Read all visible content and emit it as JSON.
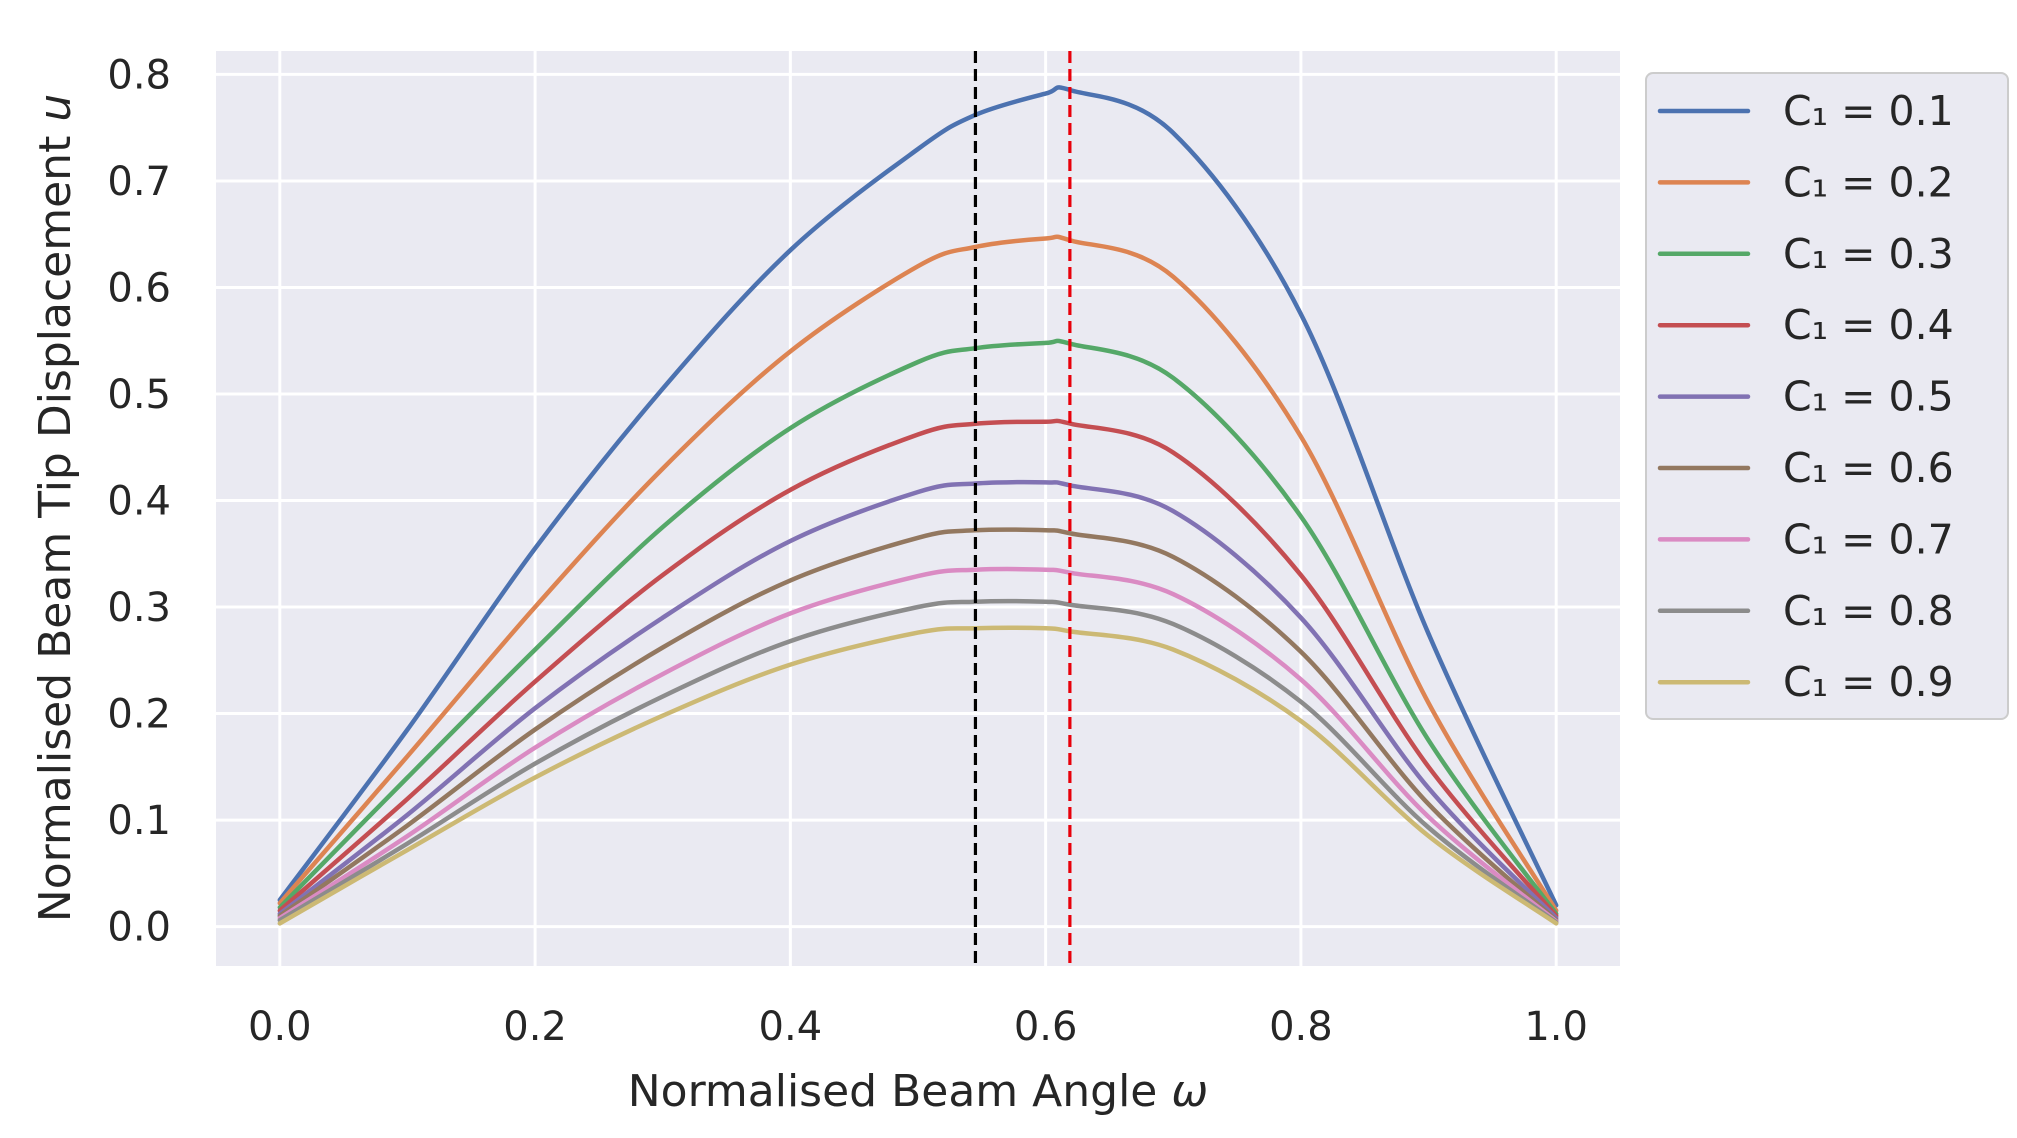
{
  "chart_data": {
    "type": "line",
    "xlabel": "Normalised Beam Angle",
    "xlabel_symbol": "ω",
    "ylabel": "Normalised Beam Tip Displacement",
    "ylabel_symbol": "u",
    "xlim": [
      -0.05,
      1.05
    ],
    "ylim": [
      -0.037,
      0.822
    ],
    "xticks": [
      "0.0",
      "0.2",
      "0.4",
      "0.6",
      "0.8",
      "1.0"
    ],
    "yticks": [
      "0.0",
      "0.1",
      "0.2",
      "0.3",
      "0.4",
      "0.5",
      "0.6",
      "0.7",
      "0.8"
    ],
    "grid": true,
    "legend_position": "outside-right",
    "x": [
      0.0,
      0.1,
      0.2,
      0.3,
      0.4,
      0.5,
      0.545,
      0.6,
      0.62,
      0.7,
      0.8,
      0.9,
      1.0
    ],
    "series": [
      {
        "name": "C₁ = 0.1",
        "color": "#4c72b0",
        "values": [
          0.025,
          0.185,
          0.355,
          0.505,
          0.635,
          0.73,
          0.762,
          0.782,
          0.785,
          0.745,
          0.575,
          0.275,
          0.02
        ]
      },
      {
        "name": "C₁ = 0.2",
        "color": "#dd8452",
        "values": [
          0.022,
          0.16,
          0.3,
          0.43,
          0.54,
          0.62,
          0.638,
          0.646,
          0.644,
          0.61,
          0.46,
          0.21,
          0.015
        ]
      },
      {
        "name": "C₁ = 0.3",
        "color": "#55a868",
        "values": [
          0.018,
          0.14,
          0.26,
          0.375,
          0.468,
          0.53,
          0.543,
          0.548,
          0.547,
          0.515,
          0.385,
          0.175,
          0.012
        ]
      },
      {
        "name": "C₁ = 0.4",
        "color": "#c44e52",
        "values": [
          0.015,
          0.12,
          0.23,
          0.33,
          0.41,
          0.462,
          0.472,
          0.474,
          0.472,
          0.445,
          0.33,
          0.15,
          0.01
        ]
      },
      {
        "name": "C₁ = 0.5",
        "color": "#8172b3",
        "values": [
          0.012,
          0.105,
          0.205,
          0.29,
          0.362,
          0.408,
          0.416,
          0.417,
          0.414,
          0.39,
          0.29,
          0.13,
          0.008
        ]
      },
      {
        "name": "C₁ = 0.6",
        "color": "#937860",
        "values": [
          0.01,
          0.095,
          0.185,
          0.262,
          0.325,
          0.365,
          0.372,
          0.372,
          0.369,
          0.347,
          0.258,
          0.115,
          0.006
        ]
      },
      {
        "name": "C₁ = 0.7",
        "color": "#da8bc3",
        "values": [
          0.008,
          0.085,
          0.168,
          0.237,
          0.294,
          0.329,
          0.335,
          0.335,
          0.332,
          0.312,
          0.232,
          0.103,
          0.005
        ]
      },
      {
        "name": "C₁ = 0.8",
        "color": "#8c8c8c",
        "values": [
          0.006,
          0.078,
          0.153,
          0.216,
          0.268,
          0.3,
          0.305,
          0.305,
          0.302,
          0.284,
          0.211,
          0.093,
          0.004
        ]
      },
      {
        "name": "C₁ = 0.9",
        "color": "#ccb974",
        "values": [
          0.003,
          0.072,
          0.14,
          0.198,
          0.246,
          0.276,
          0.28,
          0.28,
          0.277,
          0.26,
          0.193,
          0.085,
          0.003
        ]
      }
    ],
    "vlines": [
      {
        "x": 0.545,
        "color": "#000000",
        "style": "dashed"
      },
      {
        "x": 0.619,
        "color": "#e8000b",
        "style": "dashed"
      }
    ]
  }
}
